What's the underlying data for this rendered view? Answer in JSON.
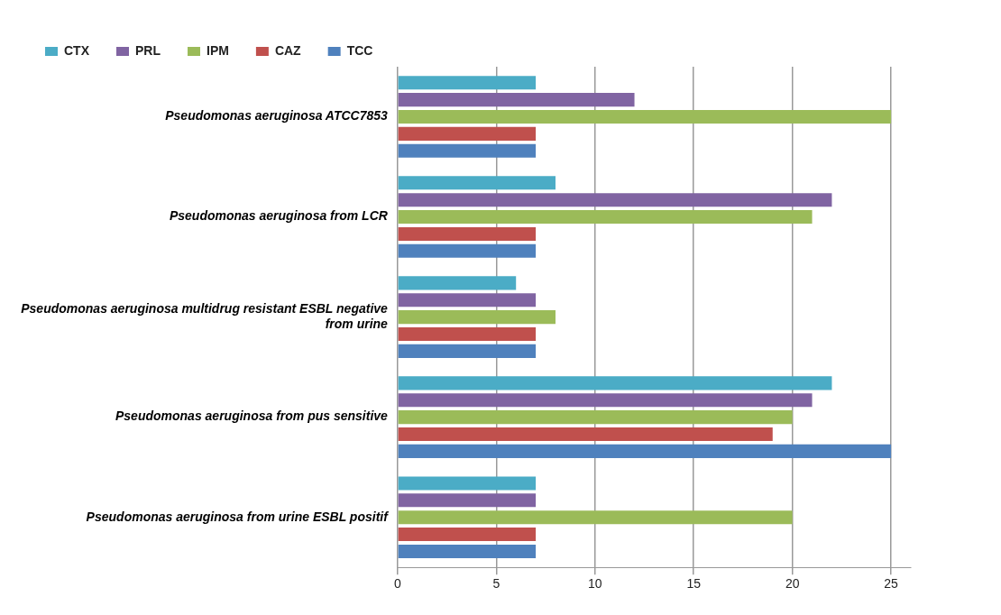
{
  "chart_data": {
    "type": "bar",
    "orientation": "horizontal",
    "categories": [
      "Pseudomonas aeruginosa ATCC7853",
      "Pseudomonas aeruginosa from LCR",
      "Pseudomonas aeruginosa multidrug resistant ESBL negative from urine",
      "Pseudomonas aeruginosa from pus sensitive",
      "Pseudomonas aeruginosa from urine ESBL positif"
    ],
    "series": [
      {
        "name": "CTX",
        "color": "#4bacc6",
        "values": [
          7,
          8,
          6,
          22,
          7
        ]
      },
      {
        "name": "PRL",
        "color": "#8064a2",
        "values": [
          12,
          22,
          7,
          21,
          7
        ]
      },
      {
        "name": "IPM",
        "color": "#9bbb59",
        "values": [
          25,
          21,
          8,
          20,
          20
        ]
      },
      {
        "name": "CAZ",
        "color": "#c0504d",
        "values": [
          7,
          7,
          7,
          19,
          7
        ]
      },
      {
        "name": "TCC",
        "color": "#4f81bd",
        "values": [
          7,
          7,
          7,
          25,
          7
        ]
      }
    ],
    "xlim": [
      0,
      26
    ],
    "xticks": [
      0,
      5,
      10,
      15,
      20,
      25
    ],
    "grid": "x",
    "legend": "top left"
  }
}
